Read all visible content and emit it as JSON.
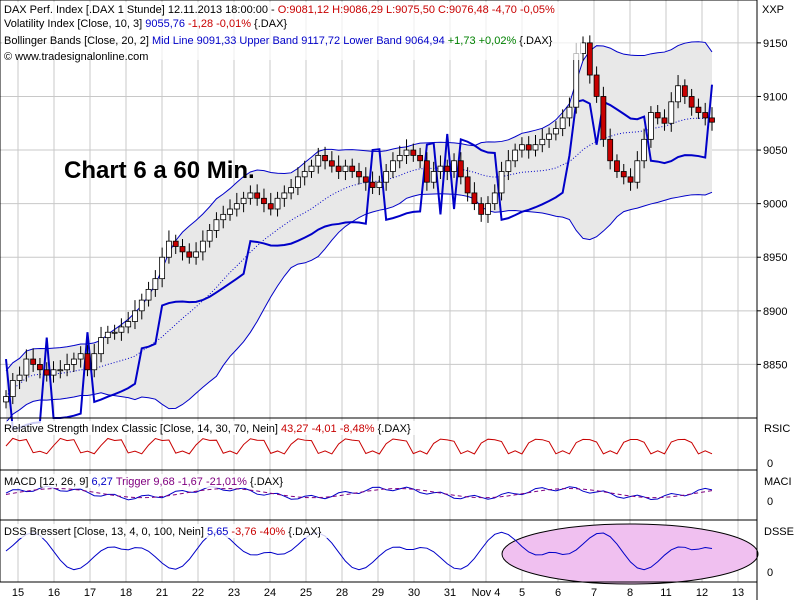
{
  "colors": {
    "bg": "#ffffff",
    "grid": "#c8c8c8",
    "band_fill": "#e8e8e8",
    "band_line": "#0000c8",
    "red": "#c80000",
    "green": "#008000",
    "purple": "#800080",
    "highlight": "#f0c0f0"
  },
  "main_panel": {
    "header_line1": {
      "prefix": "DAX Perf. Index [.DAX  1 Stunde] 12.11.2013 18:00:00 - ",
      "ohlc": "O:9081,12 H:9086,29 L:9075,50 C:9076,48 -4,70 -0,05%"
    },
    "header_line2": {
      "prefix": "Volatility Index [Close, 10, 3] ",
      "value": "9055,76",
      "change": "-1,28 -0,01%",
      "suffix": " {.DAX}"
    },
    "header_line3": {
      "prefix": "Bollinger Bands [Close, 20, 2] ",
      "mid": "Mid Line 9091,33 Upper Band 9117,72 Lower Band 9064,94",
      "change": "+1,73 +0,02%",
      "suffix": " {.DAX}"
    },
    "copyright": "© www.tradesignalonline.com",
    "annotation": "Chart 6 a 60 Min.",
    "axis_label": "XXP"
  },
  "rsi_panel": {
    "prefix": "Relative Strength Index Classic [Close, 14, 30, 70, Nein] ",
    "value": "43,27 -4,01 -8,48%",
    "suffix": " {.DAX}",
    "axis_label": "RSIC",
    "zero": "0"
  },
  "macd_panel": {
    "prefix": "MACD [12, 26, 9] ",
    "value": "6,27",
    "trigger": "Trigger 9,68 -1,67 -21,01%",
    "suffix": " {.DAX}",
    "axis_label": "MACI",
    "zero": "0"
  },
  "dss_panel": {
    "prefix": "DSS Bressert [Close, 13, 4, 0, 100, Nein] ",
    "value": "5,65",
    "change": "-3,76 -40%",
    "suffix": " {.DAX}",
    "axis_label": "DSSE",
    "zero": "0"
  },
  "chart_data": [
    {
      "type": "candlestick",
      "name": "DAX 60 Min.",
      "ylim": [
        8800,
        9190
      ],
      "y_ticks": [
        8850,
        8900,
        8950,
        9000,
        9050,
        9100,
        9150
      ],
      "x_labels": [
        "15",
        "16",
        "17",
        "18",
        "21",
        "22",
        "23",
        "24",
        "25",
        "28",
        "29",
        "30",
        "31",
        "Nov 4",
        "5",
        "6",
        "7",
        "8",
        "11",
        "12",
        "13"
      ],
      "close": [
        8820,
        8835,
        8840,
        8855,
        8850,
        8845,
        8840,
        8845,
        8845,
        8850,
        8855,
        8860,
        8845,
        8860,
        8875,
        8880,
        8880,
        8885,
        8890,
        8900,
        8910,
        8920,
        8930,
        8950,
        8965,
        8960,
        8955,
        8950,
        8955,
        8965,
        8975,
        8985,
        8990,
        8995,
        9000,
        9005,
        9010,
        9005,
        9000,
        8995,
        9005,
        9010,
        9015,
        9025,
        9030,
        9035,
        9045,
        9040,
        9035,
        9030,
        9035,
        9030,
        9025,
        9020,
        9015,
        9020,
        9030,
        9040,
        9045,
        9050,
        9045,
        9040,
        9020,
        9030,
        9035,
        9030,
        9040,
        9025,
        9010,
        9000,
        8990,
        9000,
        9010,
        9030,
        9040,
        9050,
        9055,
        9050,
        9055,
        9060,
        9065,
        9070,
        9080,
        9090,
        9140,
        9150,
        9120,
        9100,
        9060,
        9040,
        9030,
        9025,
        9020,
        9040,
        9060,
        9085,
        9080,
        9075,
        9095,
        9110,
        9100,
        9090,
        9085,
        9080,
        9076
      ],
      "bb_upper_end": 9117.72,
      "bb_mid_end": 9091.33,
      "bb_lower_end": 9064.94,
      "volatility_end": 9055.76
    },
    {
      "type": "line",
      "name": "RSI",
      "ylim": [
        0,
        100
      ]
    },
    {
      "type": "line",
      "name": "MACD",
      "trigger": "dashed"
    },
    {
      "type": "line",
      "name": "DSS",
      "ylim": [
        0,
        100
      ]
    }
  ]
}
